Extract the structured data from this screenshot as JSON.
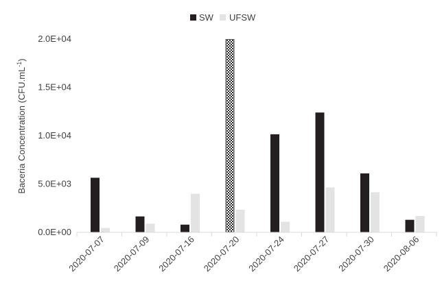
{
  "chart_data": {
    "type": "bar",
    "categories": [
      "2020-07-07",
      "2020-07-09",
      "2020-07-16",
      "2020-07-20",
      "2020-07-24",
      "2020-07-27",
      "2020-07-30",
      "2020-08-06"
    ],
    "series": [
      {
        "name": "SW",
        "color": "#231f20",
        "values": [
          5650,
          1650,
          800,
          20000,
          10150,
          12400,
          6100,
          1300
        ]
      },
      {
        "name": "UFSW",
        "color": "#e3e3e3",
        "values": [
          450,
          900,
          4000,
          2350,
          1100,
          4650,
          4150,
          1700
        ]
      }
    ],
    "ylabel": {
      "main": "Baceria Concentration (CFU.mL",
      "sup": "-1",
      "close": ")"
    },
    "ylim": [
      0,
      20000
    ],
    "yticks": [
      {
        "value": 0,
        "label": "0.0E+00"
      },
      {
        "value": 5000,
        "label": "5.0E+03"
      },
      {
        "value": 10000,
        "label": "1.0E+04"
      },
      {
        "value": 15000,
        "label": "1.5E+04"
      },
      {
        "value": 20000,
        "label": "2.0E+04"
      }
    ],
    "highlighted_bar": {
      "series": "SW",
      "category": "2020-07-20",
      "style": "checkered"
    },
    "legend_position": "top-center",
    "grid": false
  }
}
